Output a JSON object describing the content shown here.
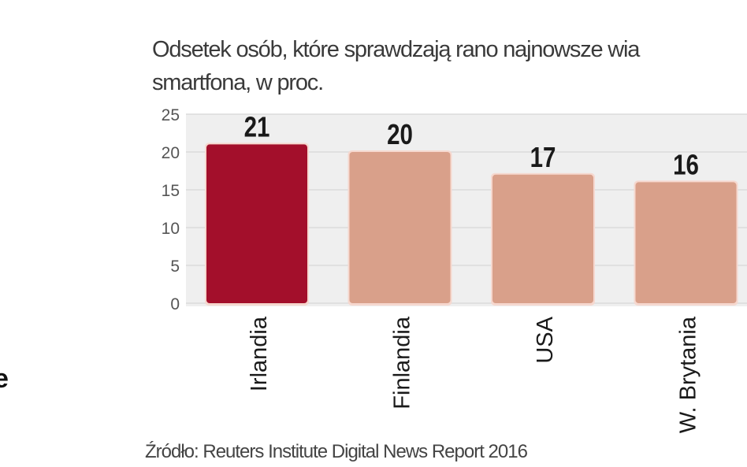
{
  "chart_data": {
    "type": "bar",
    "title_line1": "Odsetek osób, które sprawdzają rano najnowsze wia",
    "title_line2": "smartfona, w proc.",
    "categories": [
      "Irlandia",
      "Finlandia",
      "USA",
      "W. Brytania"
    ],
    "values": [
      21,
      20,
      17,
      16
    ],
    "data_labels": [
      "21",
      "20",
      "17",
      "16"
    ],
    "ylim": [
      0,
      25
    ],
    "yticks": [
      "0",
      "5",
      "10",
      "15",
      "20",
      "25"
    ],
    "grid": true,
    "colors": {
      "highlight": "#a30f2b",
      "default": "#d9a08a",
      "plot_bg": "#efefef"
    },
    "highlight_index": 0,
    "source": "Źródło: Reuters Institute Digital News Report 2016"
  },
  "fragment": "e"
}
